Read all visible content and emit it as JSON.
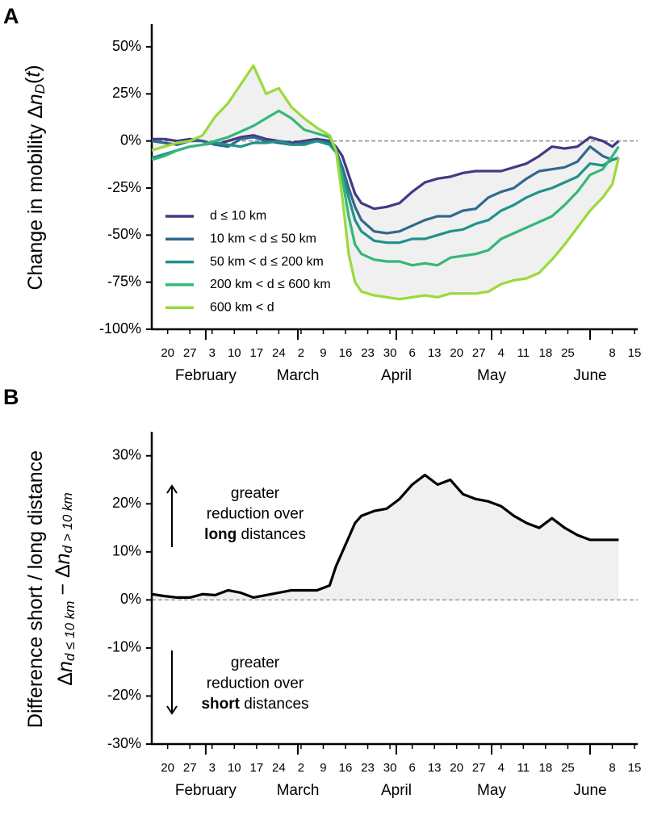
{
  "chart_data": [
    {
      "type": "line",
      "panel": "A",
      "ylabel": [
        [
          {
            "text": "Change in mobility Δ"
          },
          {
            "text": "n",
            "style": "italic"
          },
          {
            "text": "D",
            "style": "sub"
          },
          {
            "text": "("
          },
          {
            "text": "t",
            "style": "italic"
          },
          {
            "text": ")"
          }
        ]
      ],
      "x": [
        "01-15",
        "01-19",
        "01-23",
        "01-27",
        "01-31",
        "02-04",
        "02-08",
        "02-12",
        "02-16",
        "02-20",
        "02-24",
        "02-28",
        "03-03",
        "03-07",
        "03-11",
        "03-13",
        "03-15",
        "03-17",
        "03-19",
        "03-21",
        "03-25",
        "03-29",
        "04-02",
        "04-06",
        "04-10",
        "04-14",
        "04-18",
        "04-22",
        "04-26",
        "04-30",
        "05-04",
        "05-08",
        "05-12",
        "05-16",
        "05-20",
        "05-24",
        "05-28",
        "06-01",
        "06-05",
        "06-08",
        "06-10"
      ],
      "series": [
        {
          "name": "d ≤ 10 km",
          "color": "#443983",
          "values": [
            1,
            1,
            0,
            1,
            0,
            -2,
            0,
            2,
            3,
            1,
            0,
            -1,
            0,
            1,
            0,
            -3,
            -8,
            -18,
            -28,
            -33,
            -36,
            -35,
            -33,
            -27,
            -22,
            -20,
            -19,
            -17,
            -16,
            -16,
            -16,
            -14,
            -12,
            -8,
            -3,
            -4,
            -3,
            2,
            0,
            -3,
            0
          ]
        },
        {
          "name": "10 km < d ≤ 50 km",
          "color": "#31688e",
          "values": [
            0,
            -1,
            -2,
            0,
            0,
            -2,
            -3,
            1,
            2,
            0,
            -1,
            -2,
            -1,
            0,
            -1,
            -5,
            -14,
            -25,
            -35,
            -42,
            -48,
            -49,
            -48,
            -45,
            -42,
            -40,
            -40,
            -37,
            -36,
            -30,
            -27,
            -25,
            -20,
            -16,
            -15,
            -14,
            -11,
            -3,
            -8,
            -10,
            -9
          ]
        },
        {
          "name": "50 km < d ≤ 200 km",
          "color": "#21918c",
          "values": [
            -9,
            -7,
            -5,
            -3,
            -2,
            -1,
            -2,
            -3,
            -1,
            -1,
            0,
            -2,
            -2,
            0,
            -2,
            -6,
            -17,
            -30,
            -42,
            -48,
            -53,
            -54,
            -54,
            -52,
            -52,
            -50,
            -48,
            -47,
            -44,
            -42,
            -37,
            -34,
            -30,
            -27,
            -25,
            -22,
            -19,
            -12,
            -13,
            -10,
            -9
          ]
        },
        {
          "name": "200 km < d ≤ 600 km",
          "color": "#35b779",
          "values": [
            -10,
            -8,
            -5,
            -3,
            -2,
            0,
            2,
            5,
            8,
            12,
            16,
            12,
            6,
            4,
            2,
            -5,
            -20,
            -40,
            -55,
            -60,
            -63,
            -64,
            -64,
            -66,
            -65,
            -66,
            -62,
            -61,
            -60,
            -58,
            -52,
            -49,
            -46,
            -43,
            -40,
            -34,
            -27,
            -18,
            -15,
            -8,
            -3
          ]
        },
        {
          "name": "600 km < d",
          "color": "#9bd93c",
          "values": [
            -5,
            -3,
            -1,
            0,
            3,
            13,
            20,
            30,
            40,
            25,
            28,
            18,
            12,
            7,
            3,
            -5,
            -30,
            -60,
            -75,
            -80,
            -82,
            -83,
            -84,
            -83,
            -82,
            -83,
            -81,
            -81,
            -81,
            -80,
            -76,
            -74,
            -73,
            -70,
            -63,
            -55,
            -46,
            -37,
            -30,
            -23,
            -9
          ]
        }
      ],
      "fill_between": [
        0,
        4
      ],
      "fill_color": "#f0f0f0",
      "hline": 0,
      "legend": "lower left",
      "xlim": [
        "01-15",
        "06-16"
      ],
      "xticks": [
        {
          "value": "01-20",
          "label": "20"
        },
        {
          "value": "01-27",
          "label": "27"
        },
        {
          "value": "02-03",
          "label": "3"
        },
        {
          "value": "02-10",
          "label": "10"
        },
        {
          "value": "02-17",
          "label": "17"
        },
        {
          "value": "02-24",
          "label": "24"
        },
        {
          "value": "03-02",
          "label": "2"
        },
        {
          "value": "03-09",
          "label": "9"
        },
        {
          "value": "03-16",
          "label": "16"
        },
        {
          "value": "03-23",
          "label": "23"
        },
        {
          "value": "03-30",
          "label": "30"
        },
        {
          "value": "04-06",
          "label": "6"
        },
        {
          "value": "04-13",
          "label": "13"
        },
        {
          "value": "04-20",
          "label": "20"
        },
        {
          "value": "04-27",
          "label": "27"
        },
        {
          "value": "05-04",
          "label": "4"
        },
        {
          "value": "05-11",
          "label": "11"
        },
        {
          "value": "05-18",
          "label": "18"
        },
        {
          "value": "05-25",
          "label": "25"
        },
        {
          "value": "06-08",
          "label": "8"
        },
        {
          "value": "06-15",
          "label": "15"
        }
      ],
      "months": [
        {
          "value": "02-01",
          "label": "February"
        },
        {
          "value": "03-01",
          "label": "March"
        },
        {
          "value": "04-01",
          "label": "April"
        },
        {
          "value": "05-01",
          "label": "May"
        },
        {
          "value": "06-01",
          "label": "June"
        }
      ],
      "ylim": [
        -100,
        62
      ],
      "yticks": [
        {
          "value": 50,
          "label": "50%"
        },
        {
          "value": 25,
          "label": "25%"
        },
        {
          "value": 0,
          "label": "0%"
        },
        {
          "value": -25,
          "label": "-25%"
        },
        {
          "value": -50,
          "label": "-50%"
        },
        {
          "value": -75,
          "label": "-75%"
        },
        {
          "value": -100,
          "label": "-100%"
        }
      ]
    },
    {
      "type": "line",
      "panel": "B",
      "ylabel": [
        [
          {
            "text": "Difference short / long distance"
          }
        ],
        [
          {
            "text": "Δ"
          },
          {
            "text": "n",
            "style": "italic"
          },
          {
            "text": "d ≤ 10 km",
            "style": "sub"
          },
          {
            "text": " − Δ"
          },
          {
            "text": "n",
            "style": "italic"
          },
          {
            "text": "d > 10 km",
            "style": "sub"
          }
        ]
      ],
      "x": [
        "01-15",
        "01-19",
        "01-23",
        "01-27",
        "01-31",
        "02-04",
        "02-08",
        "02-12",
        "02-16",
        "02-20",
        "02-24",
        "02-28",
        "03-03",
        "03-07",
        "03-11",
        "03-13",
        "03-15",
        "03-17",
        "03-19",
        "03-21",
        "03-25",
        "03-29",
        "04-02",
        "04-06",
        "04-10",
        "04-14",
        "04-18",
        "04-22",
        "04-26",
        "04-30",
        "05-04",
        "05-08",
        "05-12",
        "05-16",
        "05-20",
        "05-24",
        "05-28",
        "06-01",
        "06-05",
        "06-08",
        "06-10"
      ],
      "series": [
        {
          "color": "#000000",
          "values": [
            1.2,
            0.8,
            0.5,
            0.5,
            1.2,
            1.0,
            2.0,
            1.5,
            0.5,
            1.0,
            1.5,
            2.0,
            2.0,
            2.0,
            3.0,
            7,
            10,
            13,
            16,
            17.5,
            18.5,
            19,
            21,
            24,
            26,
            24,
            25,
            22,
            21,
            20.5,
            19.5,
            17.5,
            16,
            15,
            17,
            15,
            13.5,
            12.5,
            12.5,
            12.5,
            12.5
          ]
        }
      ],
      "fill_to_hline": true,
      "fill_color": "#f0f0f0",
      "hline": 0,
      "annotations": [
        {
          "direction": "up",
          "lines": [
            [
              {
                "text": "greater"
              }
            ],
            [
              {
                "text": "reduction over"
              }
            ],
            [
              {
                "text": "long",
                "style": "bold"
              },
              {
                "text": " distances"
              }
            ]
          ]
        },
        {
          "direction": "down",
          "lines": [
            [
              {
                "text": "greater"
              }
            ],
            [
              {
                "text": "reduction over"
              }
            ],
            [
              {
                "text": "short",
                "style": "bold"
              },
              {
                "text": " distances"
              }
            ]
          ]
        }
      ],
      "xlim": [
        "01-15",
        "06-16"
      ],
      "xticks": [
        {
          "value": "01-20",
          "label": "20"
        },
        {
          "value": "01-27",
          "label": "27"
        },
        {
          "value": "02-03",
          "label": "3"
        },
        {
          "value": "02-10",
          "label": "10"
        },
        {
          "value": "02-17",
          "label": "17"
        },
        {
          "value": "02-24",
          "label": "24"
        },
        {
          "value": "03-02",
          "label": "2"
        },
        {
          "value": "03-09",
          "label": "9"
        },
        {
          "value": "03-16",
          "label": "16"
        },
        {
          "value": "03-23",
          "label": "23"
        },
        {
          "value": "03-30",
          "label": "30"
        },
        {
          "value": "04-06",
          "label": "6"
        },
        {
          "value": "04-13",
          "label": "13"
        },
        {
          "value": "04-20",
          "label": "20"
        },
        {
          "value": "04-27",
          "label": "27"
        },
        {
          "value": "05-04",
          "label": "4"
        },
        {
          "value": "05-11",
          "label": "11"
        },
        {
          "value": "05-18",
          "label": "18"
        },
        {
          "value": "05-25",
          "label": "25"
        },
        {
          "value": "06-08",
          "label": "8"
        },
        {
          "value": "06-15",
          "label": "15"
        }
      ],
      "months": [
        {
          "value": "02-01",
          "label": "February"
        },
        {
          "value": "03-01",
          "label": "March"
        },
        {
          "value": "04-01",
          "label": "April"
        },
        {
          "value": "05-01",
          "label": "May"
        },
        {
          "value": "06-01",
          "label": "June"
        }
      ],
      "ylim": [
        -30,
        35
      ],
      "yticks": [
        {
          "value": 30,
          "label": "30%"
        },
        {
          "value": 20,
          "label": "20%"
        },
        {
          "value": 10,
          "label": "10%"
        },
        {
          "value": 0,
          "label": "0%"
        },
        {
          "value": -10,
          "label": "-10%"
        },
        {
          "value": -20,
          "label": "-20%"
        },
        {
          "value": -30,
          "label": "-30%"
        }
      ]
    }
  ]
}
